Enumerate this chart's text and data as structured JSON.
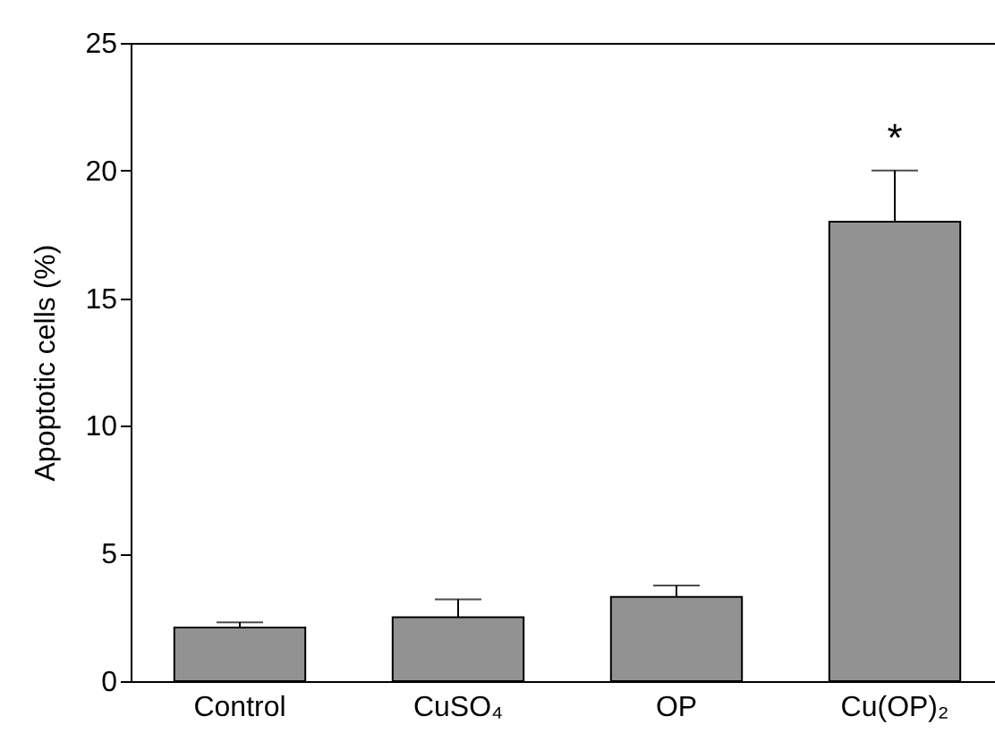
{
  "chart_data": {
    "type": "bar",
    "ylabel": "Apoptotic cells (%)",
    "categories": [
      "Control",
      "CuSO₄",
      "OP",
      "Cu(OP)₂"
    ],
    "values": [
      2.1,
      2.5,
      3.3,
      18
    ],
    "errors": [
      [
        2.1,
        2.3
      ],
      [
        2.5,
        3.2
      ],
      [
        3.3,
        3.75
      ],
      [
        18,
        20
      ]
    ],
    "color": "#929292",
    "ylim": [
      0,
      25
    ],
    "yticks": [
      0,
      5,
      10,
      15,
      20,
      25
    ],
    "annotations": [
      "*"
    ]
  }
}
